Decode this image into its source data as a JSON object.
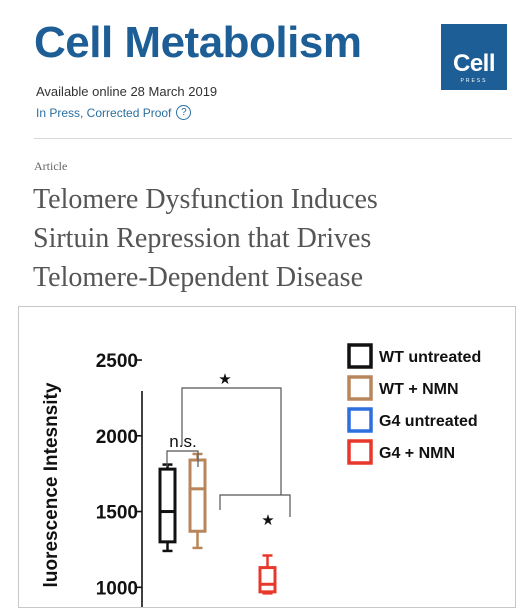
{
  "journal": {
    "title": "Cell Metabolism",
    "logo_text": "Cell",
    "logo_subtext": "PRESS",
    "brand_color": "#1d5e96"
  },
  "meta": {
    "available": "Available online 28 March 2019",
    "status": "In Press, Corrected Proof",
    "help_icon": "question-circle-icon",
    "help_glyph": "?"
  },
  "article": {
    "type": "Article",
    "title_lines": [
      "Telomere Dysfunction Induces",
      "Sirtuin Repression that Drives",
      "Telomere-Dependent Disease"
    ]
  },
  "chart_data": {
    "type": "box",
    "ylabel": "luorescence Intesnsity",
    "yticks": [
      1000,
      1500,
      2000,
      2500
    ],
    "ylim": [
      870,
      2850
    ],
    "legend_position": "top-right",
    "series": [
      {
        "name": "WT untreated",
        "color": "#111111",
        "q1": 1300,
        "median": 1500,
        "q3": 1780,
        "min": 1240,
        "max": 1810
      },
      {
        "name": "WT + NMN",
        "color": "#b8865a",
        "q1": 1370,
        "median": 1650,
        "q3": 1840,
        "min": 1260,
        "max": 1880
      },
      {
        "name": "G4 untreated",
        "color": "#2e6fe0"
      },
      {
        "name": "G4 + NMN",
        "color": "#e8382c",
        "q1": 970,
        "median": 1020,
        "q3": 1130,
        "min": 960,
        "max": 1210
      }
    ],
    "annotations": [
      {
        "text": "n.s.",
        "between": [
          "WT untreated",
          "WT + NMN"
        ]
      },
      {
        "text": "★",
        "between": [
          "WT untreated",
          "G4 + NMN"
        ]
      },
      {
        "text": "★",
        "between": [
          "WT + NMN",
          "G4 + NMN"
        ]
      }
    ]
  }
}
